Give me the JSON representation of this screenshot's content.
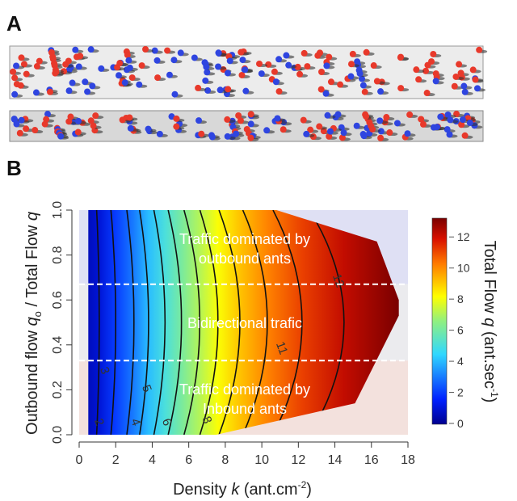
{
  "panels": {
    "a_label": "A",
    "b_label": "B"
  },
  "chart_data": {
    "type": "heatmap",
    "subtype": "filled-contour",
    "xlabel_pre": "Density ",
    "xlabel_var": "k",
    "xlabel_post": " (ant.cm",
    "xlabel_sup": "-2",
    "xlabel_end": ")",
    "ylabel_pre": "Outbound flow ",
    "ylabel_var": "q",
    "ylabel_sub": "o",
    "ylabel_mid": " / Total Flow ",
    "ylabel_var2": "q",
    "xlim": [
      0,
      18
    ],
    "ylim": [
      0,
      1
    ],
    "x_ticks": [
      "0",
      "2",
      "4",
      "6",
      "8",
      "10",
      "12",
      "14",
      "16",
      "18"
    ],
    "y_ticks": [
      "0.0",
      "0.2",
      "0.4",
      "0.6",
      "0.8",
      "1.0"
    ],
    "colorbar": {
      "label_pre": "Total Flow ",
      "label_var": "q",
      "label_post": " (ant.sec",
      "label_sup": "-1",
      "label_end": ")",
      "range": [
        0,
        13
      ],
      "ticks": [
        "0",
        "2",
        "4",
        "6",
        "8",
        "10",
        "12"
      ],
      "colormap": "jet"
    },
    "data_domain": [
      [
        0.5,
        1.0
      ],
      [
        10.8,
        1.0
      ],
      [
        16.3,
        0.86
      ],
      [
        17.5,
        0.6
      ],
      [
        17.5,
        0.53
      ],
      [
        15.1,
        0.14
      ],
      [
        7.5,
        0.0
      ],
      [
        0.5,
        0.0
      ]
    ],
    "contours": [
      {
        "level": 1,
        "k_at_mid": 1.1
      },
      {
        "level": 2,
        "k_at_mid": 2.0
      },
      {
        "level": 3,
        "k_at_mid": 3.0
      },
      {
        "level": 4,
        "k_at_mid": 3.8
      },
      {
        "level": 5,
        "k_at_mid": 4.7
      },
      {
        "level": 6,
        "k_at_mid": 5.6
      },
      {
        "level": 7,
        "k_at_mid": 6.6
      },
      {
        "level": 8,
        "k_at_mid": 7.6
      },
      {
        "level": 9,
        "k_at_mid": 8.8
      },
      {
        "level": 10,
        "k_at_mid": 10.3
      },
      {
        "level": 11,
        "k_at_mid": 12.2
      },
      {
        "level": 12,
        "k_at_mid": 14.5
      }
    ],
    "contour_labels": [
      {
        "text": "2",
        "k": 0.9,
        "q": 0.05
      },
      {
        "text": "3",
        "k": 1.2,
        "q": 0.28
      },
      {
        "text": "4",
        "k": 2.9,
        "q": 0.05
      },
      {
        "text": "5",
        "k": 3.5,
        "q": 0.2
      },
      {
        "text": "6",
        "k": 4.6,
        "q": 0.05
      },
      {
        "text": "8",
        "k": 6.8,
        "q": 0.06
      },
      {
        "text": "11",
        "k": 10.9,
        "q": 0.38
      },
      {
        "text": "12",
        "k": 14.0,
        "q": 0.68
      }
    ],
    "regions": [
      {
        "text1": "Traffic dominated by",
        "text2": "outbound ants",
        "q_range": [
          0.67,
          1.0
        ],
        "color": "#dfe0f4"
      },
      {
        "text1": "Bidirectional trafic",
        "text2": "",
        "q_range": [
          0.33,
          0.67
        ],
        "color": "#ebebee"
      },
      {
        "text1": "Traffic dominated by",
        "text2": "Inbound ants",
        "q_range": [
          0,
          0.33
        ],
        "color": "#f3e1dd"
      }
    ],
    "region_boundaries": [
      0.33,
      0.67
    ]
  },
  "colors": {
    "outbound_ant": "#e8392b",
    "inbound_ant": "#2f45e0"
  }
}
